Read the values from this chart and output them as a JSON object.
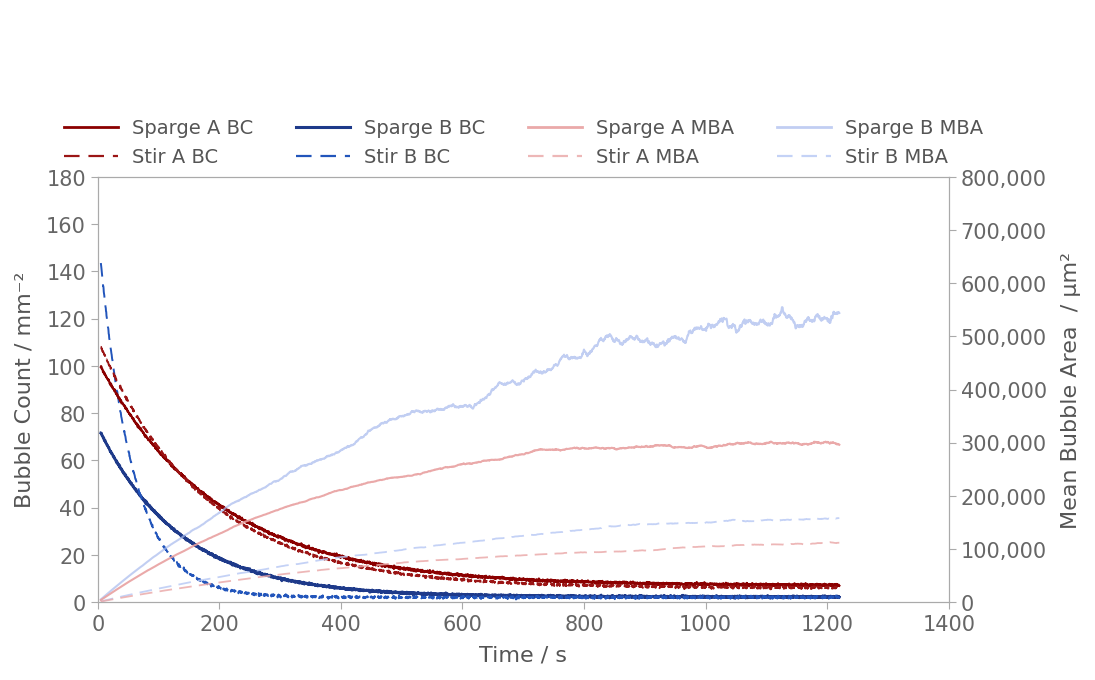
{
  "xlabel": "Time / s",
  "ylabel_left": "Bubble Count / mm⁻²",
  "ylabel_right": "Mean Bubble Area  / μm²",
  "xlim": [
    0,
    1400
  ],
  "ylim_left": [
    0,
    180
  ],
  "ylim_right": [
    0,
    800000
  ],
  "xticks": [
    0,
    200,
    400,
    600,
    800,
    1000,
    1200,
    1400
  ],
  "yticks_left": [
    0,
    20,
    40,
    60,
    80,
    100,
    120,
    140,
    160,
    180
  ],
  "yticks_right": [
    0,
    100000,
    200000,
    300000,
    400000,
    500000,
    600000,
    700000,
    800000
  ],
  "colors": {
    "sparge_a_bc": "#8B0000",
    "stir_a_bc": "#9B1515",
    "sparge_b_bc": "#1E3A8A",
    "stir_b_bc": "#2255BB",
    "sparge_a_mba": "#E8A0A0",
    "stir_a_mba": "#EAA8A8",
    "sparge_b_mba": "#AABCEE",
    "stir_b_mba": "#B8C8F4"
  },
  "background_color": "#FFFFFF",
  "axes_color": "#AAAAAA",
  "tick_color": "#666666",
  "font_color": "#555555",
  "font_size": 15,
  "legend_font_size": 14
}
